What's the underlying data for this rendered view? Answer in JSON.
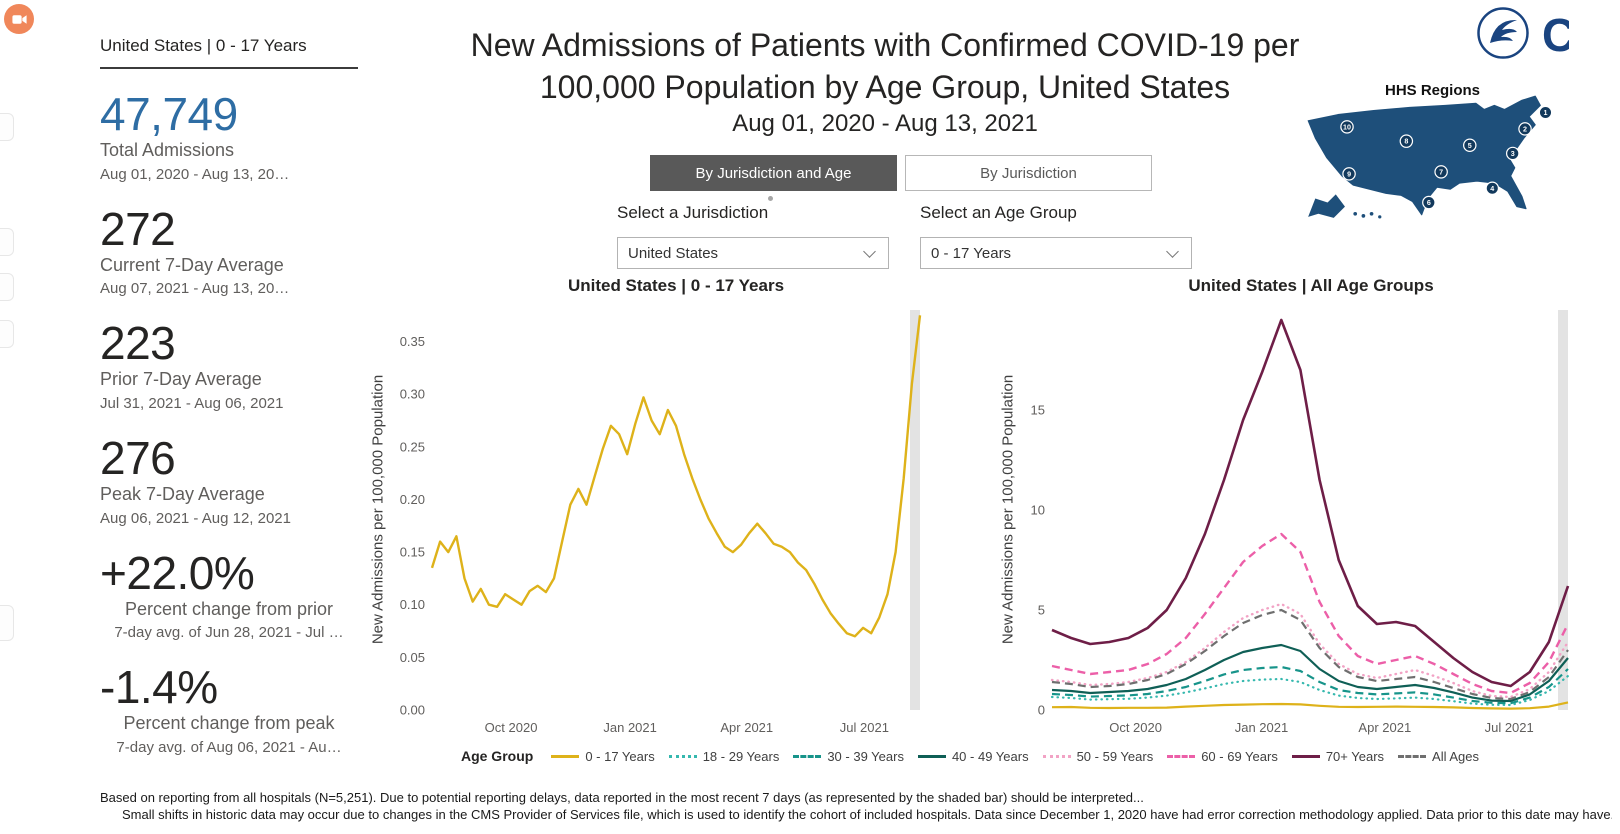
{
  "colors": {
    "accent_blue": "#2e6da4",
    "tab_selected_bg": "#595959",
    "map_blue": "#1e4f7a"
  },
  "sidebar": {
    "header": "United States | 0 - 17 Years",
    "stats": [
      {
        "value": "47,749",
        "label": "Total Admissions",
        "sublabel": "Aug 01, 2020 - Aug 13, 20…"
      },
      {
        "value": "272",
        "label": "Current 7-Day Average",
        "sublabel": "Aug 07, 2021 - Aug 13, 20…"
      },
      {
        "value": "223",
        "label": "Prior 7-Day Average",
        "sublabel": "Jul 31, 2021 - Aug 06, 2021"
      },
      {
        "value": "276",
        "label": "Peak 7-Day Average",
        "sublabel": "Aug 06, 2021 - Aug 12, 2021"
      },
      {
        "value": "+22.0%",
        "label": "Percent change from prior",
        "sublabel": "7-day avg. of Jun 28, 2021 - Jul …"
      },
      {
        "value": "-1.4%",
        "label": "Percent change from peak",
        "sublabel": "7-day avg. of Aug 06, 2021 - Au…"
      }
    ]
  },
  "header": {
    "title_line1": "New Admissions of Patients with Confirmed COVID-19 per",
    "title_line2": "100,000 Population by Age Group, United States",
    "subtitle": "Aug 01, 2020 - Aug 13, 2021"
  },
  "controls": {
    "tabs": [
      {
        "label": "By Jurisdiction and Age",
        "selected": true
      },
      {
        "label": "By Jurisdiction",
        "selected": false
      }
    ],
    "jurisdiction": {
      "label": "Select a Jurisdiction",
      "value": "United States"
    },
    "age_group": {
      "label": "Select an Age Group",
      "value": "0 - 17 Years"
    }
  },
  "hhs_map": {
    "label": "HHS Regions",
    "region_numbers": [
      "1",
      "2",
      "3",
      "4",
      "5",
      "6",
      "7",
      "8",
      "9",
      "10"
    ]
  },
  "legend": {
    "title": "Age Group",
    "items": [
      {
        "label": "0 - 17 Years",
        "color": "#deb21a",
        "dash": "solid"
      },
      {
        "label": "18 - 29 Years",
        "color": "#35b8ae",
        "dash": "dotted"
      },
      {
        "label": "30 - 39 Years",
        "color": "#17948a",
        "dash": "dashed"
      },
      {
        "label": "40 - 49 Years",
        "color": "#0f5f56",
        "dash": "solid"
      },
      {
        "label": "50 - 59 Years",
        "color": "#f2a3c5",
        "dash": "dotted"
      },
      {
        "label": "60 - 69 Years",
        "color": "#ec5fa8",
        "dash": "dashed"
      },
      {
        "label": "70+ Years",
        "color": "#6e1e47",
        "dash": "solid"
      },
      {
        "label": "All Ages",
        "color": "#6f6f6f",
        "dash": "dashed"
      }
    ]
  },
  "footer": {
    "line1": "Based on reporting from all hospitals (N=5,251). Due to potential reporting delays, data reported in the most recent 7 days (as represented by the shaded bar) should be interpreted...",
    "line2": "Small shifts in historic data may occur due to changes in the CMS Provider of Services file, which is used to identify the cohort of included hospitals. Data since December 1, 2020 have had error correction methodology applied. Data prior to this date may have..."
  },
  "chart_data": [
    {
      "type": "line",
      "title": "United States | 0 - 17 Years",
      "ylabel": "New Admissions per 100,000 Population",
      "xlabel": "",
      "ylim": [
        0,
        0.38
      ],
      "grid": false,
      "legend_position": "bottom-shared",
      "shaded_recent_bar": true,
      "x_range": [
        "Aug 01, 2020",
        "Aug 13, 2021"
      ],
      "yticks": [
        {
          "v": 0,
          "label": "0.00"
        },
        {
          "v": 0.05,
          "label": "0.05"
        },
        {
          "v": 0.1,
          "label": "0.10"
        },
        {
          "v": 0.15,
          "label": "0.15"
        },
        {
          "v": 0.2,
          "label": "0.20"
        },
        {
          "v": 0.25,
          "label": "0.25"
        },
        {
          "v": 0.3,
          "label": "0.30"
        },
        {
          "v": 0.35,
          "label": "0.35"
        }
      ],
      "xticks": [
        {
          "f": 0.162,
          "label": "Oct 2020"
        },
        {
          "f": 0.406,
          "label": "Jan 2021"
        },
        {
          "f": 0.645,
          "label": "Apr 2021"
        },
        {
          "f": 0.886,
          "label": "Jul 2021"
        }
      ],
      "series": [
        {
          "name": "0 - 17 Years",
          "color": "#deb21a",
          "dash": "solid",
          "width": 2.4,
          "values": [
            0.135,
            0.16,
            0.15,
            0.165,
            0.125,
            0.103,
            0.115,
            0.1,
            0.098,
            0.11,
            0.105,
            0.1,
            0.113,
            0.118,
            0.112,
            0.125,
            0.16,
            0.195,
            0.21,
            0.195,
            0.222,
            0.248,
            0.27,
            0.262,
            0.243,
            0.272,
            0.297,
            0.275,
            0.262,
            0.285,
            0.27,
            0.243,
            0.22,
            0.2,
            0.182,
            0.168,
            0.155,
            0.15,
            0.157,
            0.168,
            0.177,
            0.168,
            0.158,
            0.155,
            0.15,
            0.14,
            0.133,
            0.12,
            0.105,
            0.092,
            0.082,
            0.073,
            0.07,
            0.078,
            0.073,
            0.088,
            0.11,
            0.15,
            0.22,
            0.31,
            0.375
          ]
        }
      ]
    },
    {
      "type": "line",
      "title": "United States | All Age Groups",
      "ylabel": "New Admissions per 100,000 Population",
      "xlabel": "",
      "ylim": [
        0,
        20
      ],
      "grid": false,
      "legend_position": "bottom-shared",
      "shaded_recent_bar": true,
      "x_range": [
        "Aug 01, 2020",
        "Aug 13, 2021"
      ],
      "yticks": [
        {
          "v": 0,
          "label": "0"
        },
        {
          "v": 5,
          "label": "5"
        },
        {
          "v": 10,
          "label": "10"
        },
        {
          "v": 15,
          "label": "15"
        }
      ],
      "xticks": [
        {
          "f": 0.162,
          "label": "Oct 2020"
        },
        {
          "f": 0.406,
          "label": "Jan 2021"
        },
        {
          "f": 0.645,
          "label": "Apr 2021"
        },
        {
          "f": 0.886,
          "label": "Jul 2021"
        }
      ],
      "series": [
        {
          "name": "0 - 17 Years",
          "color": "#deb21a",
          "dash": "solid",
          "width": 2.2,
          "values": [
            0.14,
            0.15,
            0.11,
            0.1,
            0.11,
            0.11,
            0.12,
            0.17,
            0.21,
            0.25,
            0.27,
            0.29,
            0.3,
            0.28,
            0.21,
            0.16,
            0.15,
            0.16,
            0.17,
            0.16,
            0.15,
            0.13,
            0.1,
            0.08,
            0.07,
            0.09,
            0.17,
            0.38
          ]
        },
        {
          "name": "18 - 29 Years",
          "color": "#35b8ae",
          "dash": "dotted",
          "width": 2.2,
          "values": [
            0.65,
            0.6,
            0.52,
            0.54,
            0.56,
            0.62,
            0.72,
            0.88,
            1.08,
            1.3,
            1.45,
            1.52,
            1.55,
            1.4,
            1.0,
            0.72,
            0.6,
            0.55,
            0.58,
            0.62,
            0.55,
            0.44,
            0.32,
            0.26,
            0.25,
            0.5,
            0.95,
            1.7
          ]
        },
        {
          "name": "30 - 39 Years",
          "color": "#17948a",
          "dash": "dashed",
          "width": 2.2,
          "values": [
            0.8,
            0.75,
            0.67,
            0.7,
            0.73,
            0.8,
            0.95,
            1.15,
            1.45,
            1.78,
            2.0,
            2.1,
            2.15,
            1.95,
            1.4,
            1.0,
            0.85,
            0.78,
            0.83,
            0.88,
            0.78,
            0.62,
            0.45,
            0.36,
            0.34,
            0.62,
            1.15,
            2.05
          ]
        },
        {
          "name": "40 - 49 Years",
          "color": "#0f5f56",
          "dash": "solid",
          "width": 2.2,
          "values": [
            1.0,
            0.95,
            0.85,
            0.9,
            0.95,
            1.05,
            1.25,
            1.55,
            2.0,
            2.5,
            2.9,
            3.1,
            3.25,
            2.95,
            2.05,
            1.45,
            1.15,
            1.05,
            1.15,
            1.25,
            1.1,
            0.88,
            0.62,
            0.47,
            0.45,
            0.78,
            1.45,
            2.6
          ]
        },
        {
          "name": "50 - 59 Years",
          "color": "#f2a3c5",
          "dash": "dotted",
          "width": 2.4,
          "values": [
            1.5,
            1.4,
            1.25,
            1.3,
            1.4,
            1.6,
            1.9,
            2.4,
            3.1,
            3.9,
            4.6,
            5.0,
            5.3,
            4.8,
            3.3,
            2.3,
            1.8,
            1.6,
            1.8,
            2.0,
            1.7,
            1.35,
            0.95,
            0.7,
            0.65,
            1.05,
            1.9,
            3.4
          ]
        },
        {
          "name": "60 - 69 Years",
          "color": "#ec5fa8",
          "dash": "dashed",
          "width": 2.4,
          "values": [
            2.2,
            2.0,
            1.8,
            1.9,
            2.0,
            2.3,
            2.8,
            3.6,
            4.8,
            6.1,
            7.4,
            8.2,
            8.8,
            7.9,
            5.4,
            3.7,
            2.7,
            2.3,
            2.5,
            2.7,
            2.3,
            1.8,
            1.3,
            0.95,
            0.85,
            1.35,
            2.4,
            4.3
          ]
        },
        {
          "name": "All Ages",
          "color": "#6f6f6f",
          "dash": "dashed",
          "width": 2.2,
          "values": [
            1.4,
            1.3,
            1.15,
            1.2,
            1.3,
            1.5,
            1.8,
            2.3,
            2.95,
            3.7,
            4.35,
            4.75,
            5.0,
            4.5,
            3.1,
            2.15,
            1.65,
            1.45,
            1.55,
            1.65,
            1.4,
            1.1,
            0.8,
            0.6,
            0.55,
            0.9,
            1.65,
            3.0
          ]
        },
        {
          "name": "70+ Years",
          "color": "#6e1e47",
          "dash": "solid",
          "width": 2.6,
          "values": [
            4.0,
            3.6,
            3.3,
            3.4,
            3.6,
            4.1,
            5.0,
            6.6,
            8.8,
            11.5,
            14.5,
            16.9,
            19.5,
            17.0,
            11.5,
            7.5,
            5.2,
            4.3,
            4.4,
            4.2,
            3.4,
            2.6,
            1.9,
            1.4,
            1.2,
            1.9,
            3.4,
            6.2
          ]
        }
      ]
    }
  ]
}
